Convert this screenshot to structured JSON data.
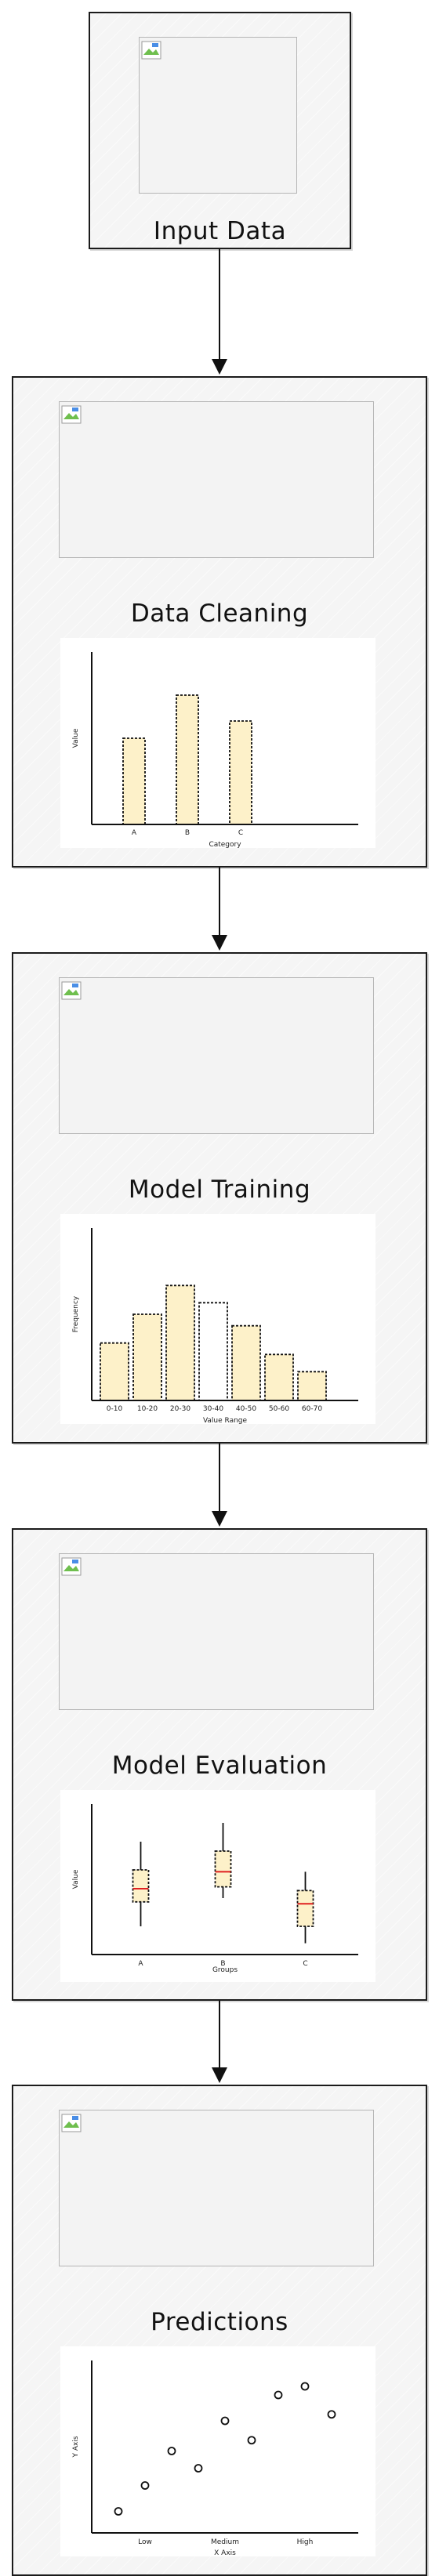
{
  "flow": {
    "steps": [
      {
        "title": "Input Data"
      },
      {
        "title": "Data Cleaning"
      },
      {
        "title": "Model Training"
      },
      {
        "title": "Model Evaluation"
      },
      {
        "title": "Predictions"
      }
    ]
  },
  "chart_data": [
    {
      "type": "bar",
      "categories": [
        "A",
        "B",
        "C"
      ],
      "values": [
        50,
        75,
        60
      ],
      "xlabel": "Category",
      "ylabel": "Value",
      "ylim": [
        0,
        100
      ],
      "fill": "#fdf1c9",
      "grid": false
    },
    {
      "type": "bar",
      "categories": [
        "0-10",
        "10-20",
        "20-30",
        "30-40",
        "40-50",
        "50-60",
        "60-70"
      ],
      "values": [
        10,
        15,
        20,
        17,
        13,
        8,
        5
      ],
      "xlabel": "Value Range",
      "ylabel": "Frequency",
      "ylim": [
        0,
        30
      ],
      "fills": [
        "#fdf1c9",
        "#fdf1c9",
        "#fdf1c9",
        "#ffffff",
        "#fdf1c9",
        "#fdf1c9",
        "#fdf1c9"
      ],
      "grid": false
    },
    {
      "type": "box",
      "categories": [
        "A",
        "B",
        "C"
      ],
      "boxes": [
        {
          "whisker_low": 1.5,
          "q1": 2.8,
          "median": 3.5,
          "q3": 4.5,
          "whisker_high": 6.0
        },
        {
          "whisker_low": 3.0,
          "q1": 3.6,
          "median": 4.4,
          "q3": 5.5,
          "whisker_high": 7.0
        },
        {
          "whisker_low": 0.6,
          "q1": 1.5,
          "median": 2.7,
          "q3": 3.4,
          "whisker_high": 4.4
        }
      ],
      "xlabel": "Groups",
      "ylabel": "Value",
      "ylim": [
        0,
        8
      ],
      "box_fill": "#fdf1c9",
      "median_color": "#e02020",
      "grid": false
    },
    {
      "type": "scatter",
      "x": [
        1,
        2,
        3,
        4,
        5,
        6,
        7,
        8,
        9
      ],
      "y": [
        1.0,
        2.2,
        3.8,
        3.0,
        5.2,
        4.3,
        6.4,
        6.8,
        5.5
      ],
      "x_tick_labels": [
        {
          "x": 2,
          "label": "Low"
        },
        {
          "x": 5,
          "label": "Medium"
        },
        {
          "x": 8,
          "label": "High"
        }
      ],
      "xlabel": "X Axis",
      "ylabel": "Y Axis",
      "xlim": [
        0,
        10
      ],
      "ylim": [
        0,
        8
      ],
      "grid": false
    }
  ]
}
